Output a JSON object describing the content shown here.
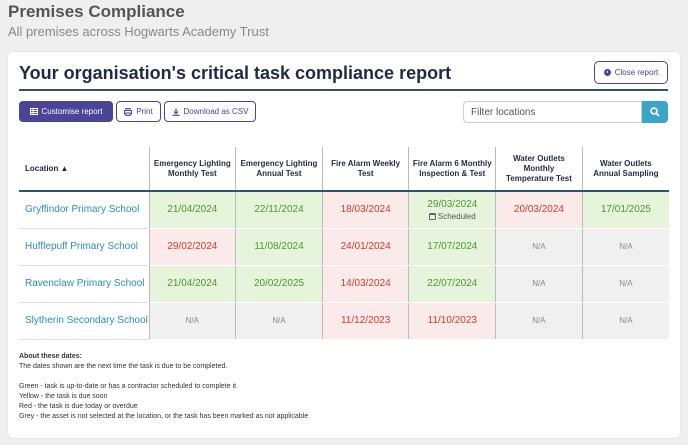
{
  "page": {
    "title": "Premises Compliance",
    "subtitle": "All premises across Hogwarts Academy Trust"
  },
  "card": {
    "title": "Your organisation's critical task compliance report",
    "close_label": "Close report"
  },
  "toolbar": {
    "customise_label": "Customise report",
    "print_label": "Print",
    "csv_label": "Download as CSV",
    "filter_placeholder": "Filter locations"
  },
  "table": {
    "headers": [
      "Location ▲",
      "Emergency Lighting Monthly Test",
      "Emergency Lighting Annual Test",
      "Fire Alarm Weekly Test",
      "Fire Alarm 6 Monthly Inspection & Test",
      "Water Outlets Monthly Temperature Test",
      "Water Outlets Annual Sampling"
    ],
    "rows": [
      {
        "location": "Gryffindor Primary School",
        "cells": [
          {
            "value": "21/04/2024",
            "status": "green"
          },
          {
            "value": "22/11/2024",
            "status": "green"
          },
          {
            "value": "18/03/2024",
            "status": "red"
          },
          {
            "value": "29/03/2024",
            "status": "green",
            "note": "Scheduled"
          },
          {
            "value": "20/03/2024",
            "status": "red"
          },
          {
            "value": "17/01/2025",
            "status": "green"
          }
        ]
      },
      {
        "location": "Hufflepuff Primary School",
        "cells": [
          {
            "value": "29/02/2024",
            "status": "red"
          },
          {
            "value": "11/08/2024",
            "status": "green"
          },
          {
            "value": "24/01/2024",
            "status": "red"
          },
          {
            "value": "17/07/2024",
            "status": "green"
          },
          {
            "value": "N/A",
            "status": "grey"
          },
          {
            "value": "N/A",
            "status": "grey"
          }
        ]
      },
      {
        "location": "Ravenclaw Primary School",
        "cells": [
          {
            "value": "21/04/2024",
            "status": "green"
          },
          {
            "value": "20/02/2025",
            "status": "green"
          },
          {
            "value": "14/03/2024",
            "status": "red"
          },
          {
            "value": "22/07/2024",
            "status": "green"
          },
          {
            "value": "N/A",
            "status": "grey"
          },
          {
            "value": "N/A",
            "status": "grey"
          }
        ]
      },
      {
        "location": "Slytherin Secondary School",
        "cells": [
          {
            "value": "N/A",
            "status": "grey"
          },
          {
            "value": "N/A",
            "status": "grey"
          },
          {
            "value": "11/12/2023",
            "status": "red"
          },
          {
            "value": "11/10/2023",
            "status": "red"
          },
          {
            "value": "N/A",
            "status": "grey"
          },
          {
            "value": "N/A",
            "status": "grey"
          }
        ]
      }
    ]
  },
  "notes": {
    "heading": "About these dates:",
    "intro": "The dates shown are the next time the task is due to be completed.",
    "green": "Green - task is up-to-date or has a contractor scheduled to complete it",
    "yellow": "Yellow - the task is due soon",
    "red": "Red - the task is due today or overdue",
    "grey": "Grey - the asset is not selected at the location, or the task has been marked as not applicable"
  },
  "colors": {
    "brand": "#4a4596",
    "accent": "#3aa5c9",
    "green_bg": "#e6f4dc",
    "red_bg": "#fbeaea",
    "grey_bg": "#f0f0f0"
  }
}
